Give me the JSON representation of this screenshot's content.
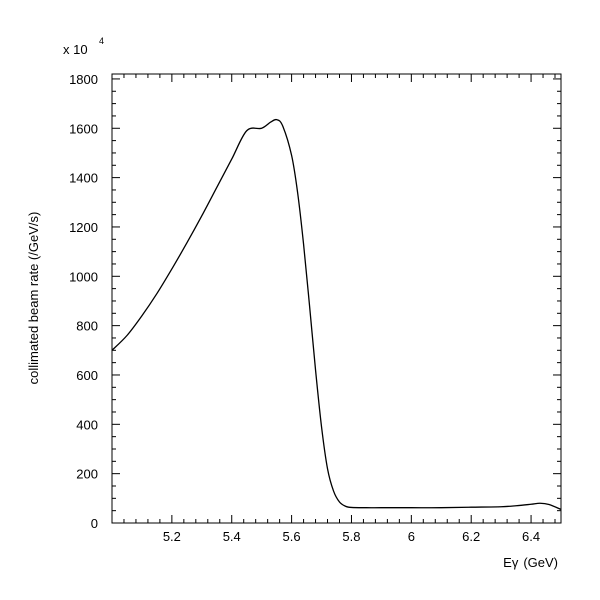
{
  "chart_data": {
    "type": "line",
    "title": "",
    "xlabel": "Eγ (GeV)",
    "xlabel_base": "E",
    "xlabel_symbol": "γ",
    "xlabel_unit": "(GeV)",
    "ylabel": "collimated beam rate (/GeV/s)",
    "y_multiplier_base": "x 10",
    "y_multiplier_exp": "4",
    "xlim": [
      5.0,
      6.5
    ],
    "ylim": [
      0,
      1820
    ],
    "x_ticks": [
      5.2,
      5.4,
      5.6,
      5.8,
      6.0,
      6.2,
      6.4
    ],
    "x_tick_labels": [
      "5.2",
      "5.4",
      "5.6",
      "5.8",
      "6",
      "6.2",
      "6.4"
    ],
    "y_ticks": [
      0,
      200,
      400,
      600,
      800,
      1000,
      1200,
      1400,
      1600,
      1800
    ],
    "y_tick_labels": [
      "0",
      "200",
      "400",
      "600",
      "800",
      "1000",
      "1200",
      "1400",
      "1600",
      "1800"
    ],
    "grid": false,
    "series": [
      {
        "x": [
          5.0,
          5.05,
          5.1,
          5.15,
          5.2,
          5.25,
          5.3,
          5.35,
          5.4,
          5.45,
          5.5,
          5.53,
          5.55,
          5.57,
          5.6,
          5.62,
          5.64,
          5.66,
          5.68,
          5.7,
          5.72,
          5.74,
          5.76,
          5.78,
          5.8,
          5.85,
          5.9,
          6.0,
          6.1,
          6.2,
          6.3,
          6.35,
          6.4,
          6.43,
          6.46,
          6.5
        ],
        "y": [
          700,
          760,
          840,
          930,
          1030,
          1135,
          1245,
          1360,
          1475,
          1590,
          1600,
          1625,
          1635,
          1610,
          1490,
          1340,
          1130,
          880,
          620,
          390,
          220,
          130,
          85,
          68,
          63,
          62,
          62,
          62,
          62,
          64,
          66,
          70,
          76,
          80,
          75,
          55
        ]
      }
    ]
  }
}
